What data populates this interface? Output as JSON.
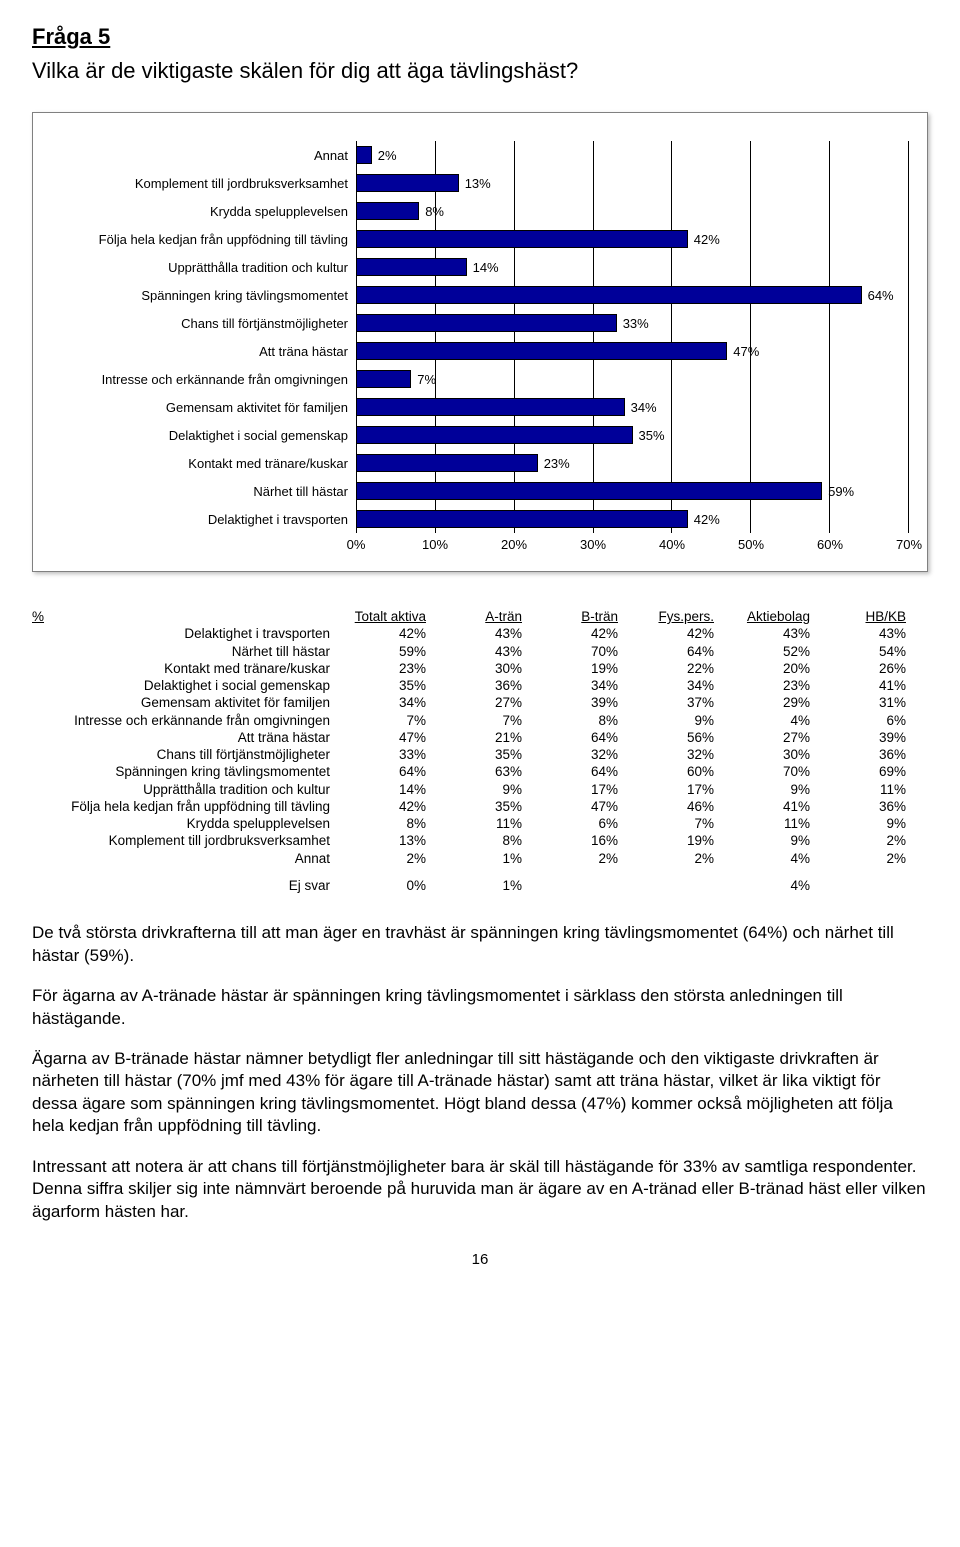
{
  "question_label": "Fråga 5",
  "question_text": "Vilka är de viktigaste skälen för dig att äga tävlingshäst?",
  "chart": {
    "type": "bar",
    "bar_color": "#000099",
    "bar_border": "#000000",
    "grid_color": "#000000",
    "background": "#ffffff",
    "xmax": 70,
    "xtick_step": 10,
    "categories": [
      {
        "label": "Annat",
        "value": 2
      },
      {
        "label": "Komplement till jordbruksverksamhet",
        "value": 13
      },
      {
        "label": "Krydda spelupplevelsen",
        "value": 8
      },
      {
        "label": "Följa hela kedjan från uppfödning till tävling",
        "value": 42
      },
      {
        "label": "Upprätthålla tradition och kultur",
        "value": 14
      },
      {
        "label": "Spänningen kring tävlingsmomentet",
        "value": 64
      },
      {
        "label": "Chans till förtjänstmöjligheter",
        "value": 33
      },
      {
        "label": "Att träna hästar",
        "value": 47
      },
      {
        "label": "Intresse och erkännande från omgivningen",
        "value": 7
      },
      {
        "label": "Gemensam aktivitet för familjen",
        "value": 34
      },
      {
        "label": "Delaktighet i social gemenskap",
        "value": 35
      },
      {
        "label": "Kontakt med tränare/kuskar",
        "value": 23
      },
      {
        "label": "Närhet till hästar",
        "value": 59
      },
      {
        "label": "Delaktighet i travsporten",
        "value": 42
      }
    ]
  },
  "table": {
    "header": [
      "%",
      "Totalt aktiva",
      "A-trän",
      "B-trän",
      "Fys.pers.",
      "Aktiebolag",
      "HB/KB"
    ],
    "rows": [
      {
        "label": "Delaktighet i travsporten",
        "vals": [
          "42%",
          "43%",
          "42%",
          "42%",
          "43%",
          "43%"
        ]
      },
      {
        "label": "Närhet till hästar",
        "vals": [
          "59%",
          "43%",
          "70%",
          "64%",
          "52%",
          "54%"
        ]
      },
      {
        "label": "Kontakt med tränare/kuskar",
        "vals": [
          "23%",
          "30%",
          "19%",
          "22%",
          "20%",
          "26%"
        ]
      },
      {
        "label": "Delaktighet i social gemenskap",
        "vals": [
          "35%",
          "36%",
          "34%",
          "34%",
          "23%",
          "41%"
        ]
      },
      {
        "label": "Gemensam aktivitet för familjen",
        "vals": [
          "34%",
          "27%",
          "39%",
          "37%",
          "29%",
          "31%"
        ]
      },
      {
        "label": "Intresse och erkännande från omgivningen",
        "vals": [
          "7%",
          "7%",
          "8%",
          "9%",
          "4%",
          "6%"
        ]
      },
      {
        "label": "Att träna hästar",
        "vals": [
          "47%",
          "21%",
          "64%",
          "56%",
          "27%",
          "39%"
        ]
      },
      {
        "label": "Chans till förtjänstmöjligheter",
        "vals": [
          "33%",
          "35%",
          "32%",
          "32%",
          "30%",
          "36%"
        ]
      },
      {
        "label": "Spänningen kring tävlingsmomentet",
        "vals": [
          "64%",
          "63%",
          "64%",
          "60%",
          "70%",
          "69%"
        ]
      },
      {
        "label": "Upprätthålla tradition och kultur",
        "vals": [
          "14%",
          "9%",
          "17%",
          "17%",
          "9%",
          "11%"
        ]
      },
      {
        "label": "Följa hela kedjan från uppfödning till tävling",
        "vals": [
          "42%",
          "35%",
          "47%",
          "46%",
          "41%",
          "36%"
        ]
      },
      {
        "label": "Krydda spelupplevelsen",
        "vals": [
          "8%",
          "11%",
          "6%",
          "7%",
          "11%",
          "9%"
        ]
      },
      {
        "label": "Komplement till jordbruksverksamhet",
        "vals": [
          "13%",
          "8%",
          "16%",
          "19%",
          "9%",
          "2%"
        ]
      },
      {
        "label": "Annat",
        "vals": [
          "2%",
          "1%",
          "2%",
          "2%",
          "4%",
          "2%"
        ]
      }
    ],
    "ej_row": {
      "label": "Ej svar",
      "vals": [
        "0%",
        "1%",
        "",
        "",
        "4%",
        ""
      ]
    }
  },
  "paragraphs": [
    "De två största drivkrafterna till att man äger en travhäst är spänningen kring tävlingsmomentet (64%) och närhet till hästar (59%).",
    "För ägarna av A-tränade hästar är spänningen kring tävlingsmomentet i särklass den största anledningen till hästägande.",
    "Ägarna av B-tränade hästar nämner betydligt fler anledningar till sitt hästägande och den viktigaste drivkraften är närheten till hästar (70% jmf med 43% för ägare till A-tränade hästar) samt att träna hästar, vilket är lika viktigt för dessa ägare som spänningen kring tävlingsmomentet. Högt bland dessa (47%) kommer också möjligheten att följa hela kedjan från uppfödning till tävling.",
    "Intressant att notera är att chans till förtjänstmöjligheter bara är skäl till hästägande för 33% av samtliga respondenter. Denna siffra skiljer sig inte nämnvärt beroende på huruvida man är ägare av en A-tränad eller B-tränad häst eller vilken ägarform hästen har."
  ],
  "page_number": "16"
}
